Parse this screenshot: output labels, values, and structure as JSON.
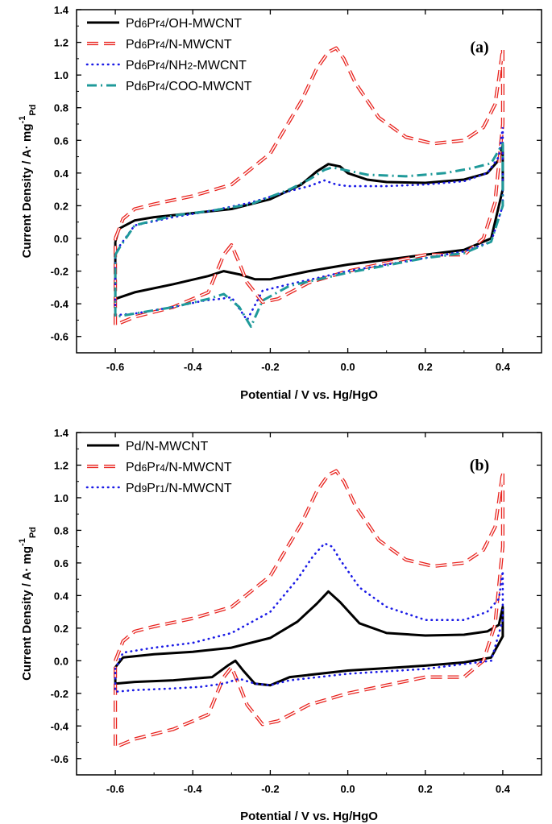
{
  "chart_data": [
    {
      "type": "line",
      "panel_label": "(a)",
      "xlabel": "Potential / V vs. Hg/HgO",
      "ylabel": "Current Density / A· mg",
      "ylabel_sup": "-1",
      "ylabel_sub": "Pd",
      "xlim": [
        -0.7,
        0.5
      ],
      "ylim": [
        -0.7,
        1.4
      ],
      "xticks": [
        "-0.6",
        "-0.4",
        "-0.2",
        "0.0",
        "0.2",
        "0.4"
      ],
      "yticks": [
        "-0.6",
        "-0.4",
        "-0.2",
        "0.0",
        "0.2",
        "0.4",
        "0.6",
        "0.8",
        "1.0",
        "1.2",
        "1.4"
      ],
      "series": [
        {
          "name": "Pd6Pr4/OH-MWCNT",
          "parts": [
            [
              "Pd",
              ""
            ],
            [
              "6",
              "sub"
            ],
            [
              "Pr",
              ""
            ],
            [
              "4",
              "sub"
            ],
            [
              "/OH-MWCNT",
              ""
            ]
          ],
          "color": "#000000",
          "style": "solid",
          "x": [
            -0.6,
            -0.59,
            -0.55,
            -0.5,
            -0.4,
            -0.3,
            -0.2,
            -0.12,
            -0.08,
            -0.05,
            -0.02,
            0.0,
            0.05,
            0.1,
            0.2,
            0.3,
            0.36,
            0.39,
            0.4,
            0.4,
            0.37,
            0.3,
            0.2,
            0.1,
            0.0,
            -0.1,
            -0.2,
            -0.24,
            -0.28,
            -0.32,
            -0.36,
            -0.45,
            -0.55,
            -0.6,
            -0.6
          ],
          "y": [
            -0.02,
            0.06,
            0.11,
            0.13,
            0.155,
            0.18,
            0.24,
            0.33,
            0.41,
            0.455,
            0.44,
            0.4,
            0.36,
            0.345,
            0.34,
            0.36,
            0.4,
            0.48,
            0.57,
            0.3,
            0.0,
            -0.07,
            -0.1,
            -0.13,
            -0.16,
            -0.2,
            -0.25,
            -0.25,
            -0.22,
            -0.2,
            -0.23,
            -0.28,
            -0.33,
            -0.37,
            -0.02
          ]
        },
        {
          "name": "Pd6Pr4/N-MWCNT",
          "parts": [
            [
              "Pd",
              ""
            ],
            [
              "6",
              "sub"
            ],
            [
              "Pr",
              ""
            ],
            [
              "4",
              "sub"
            ],
            [
              "/N-MWCNT",
              ""
            ]
          ],
          "color": "#e8231e",
          "style": "double-dash",
          "x": [
            -0.6,
            -0.58,
            -0.55,
            -0.5,
            -0.4,
            -0.3,
            -0.2,
            -0.12,
            -0.08,
            -0.05,
            -0.03,
            -0.01,
            0.02,
            0.08,
            0.15,
            0.22,
            0.3,
            0.35,
            0.38,
            0.39,
            0.4,
            0.4,
            0.38,
            0.35,
            0.3,
            0.2,
            0.1,
            0.0,
            -0.1,
            -0.18,
            -0.22,
            -0.26,
            -0.28,
            -0.3,
            -0.32,
            -0.36,
            -0.45,
            -0.55,
            -0.6,
            -0.6
          ],
          "y": [
            0.0,
            0.12,
            0.18,
            0.21,
            0.26,
            0.33,
            0.52,
            0.84,
            1.04,
            1.14,
            1.165,
            1.1,
            0.95,
            0.74,
            0.62,
            0.58,
            0.6,
            0.68,
            0.82,
            0.98,
            1.16,
            0.7,
            0.22,
            0.0,
            -0.1,
            -0.1,
            -0.15,
            -0.2,
            -0.27,
            -0.37,
            -0.39,
            -0.27,
            -0.15,
            -0.04,
            -0.1,
            -0.33,
            -0.42,
            -0.48,
            -0.53,
            0.0
          ]
        },
        {
          "name": "Pd6Pr4/NH2-MWCNT",
          "parts": [
            [
              "Pd",
              ""
            ],
            [
              "6",
              "sub"
            ],
            [
              "Pr",
              ""
            ],
            [
              "4",
              "sub"
            ],
            [
              "/NH",
              ""
            ],
            [
              "2",
              "sub"
            ],
            [
              "-MWCNT",
              ""
            ]
          ],
          "color": "#1a1ae6",
          "style": "dot",
          "x": [
            -0.6,
            -0.59,
            -0.55,
            -0.45,
            -0.35,
            -0.25,
            -0.15,
            -0.1,
            -0.06,
            -0.03,
            0.0,
            0.1,
            0.2,
            0.3,
            0.36,
            0.39,
            0.4,
            0.4,
            0.37,
            0.3,
            0.2,
            0.0,
            -0.15,
            -0.22,
            -0.26,
            -0.3,
            -0.33,
            -0.37,
            -0.45,
            -0.55,
            -0.6,
            -0.6
          ],
          "y": [
            -0.1,
            -0.05,
            0.08,
            0.13,
            0.17,
            0.22,
            0.29,
            0.32,
            0.355,
            0.33,
            0.32,
            0.32,
            0.33,
            0.35,
            0.4,
            0.5,
            0.68,
            0.2,
            -0.02,
            -0.08,
            -0.12,
            -0.2,
            -0.28,
            -0.32,
            -0.5,
            -0.36,
            -0.37,
            -0.38,
            -0.42,
            -0.46,
            -0.47,
            -0.1
          ]
        },
        {
          "name": "Pd6Pr4/COO-MWCNT",
          "parts": [
            [
              "Pd",
              ""
            ],
            [
              "6",
              "sub"
            ],
            [
              "Pr",
              ""
            ],
            [
              "4",
              "sub"
            ],
            [
              "/COO-MWCNT",
              ""
            ]
          ],
          "color": "#1f9a9a",
          "style": "dash-dot",
          "x": [
            -0.6,
            -0.59,
            -0.55,
            -0.45,
            -0.35,
            -0.25,
            -0.15,
            -0.1,
            -0.06,
            -0.04,
            -0.01,
            0.05,
            0.15,
            0.25,
            0.32,
            0.37,
            0.4,
            0.4,
            0.37,
            0.3,
            0.2,
            0.0,
            -0.15,
            -0.22,
            -0.25,
            -0.28,
            -0.32,
            -0.36,
            -0.45,
            -0.55,
            -0.6,
            -0.6
          ],
          "y": [
            -0.1,
            -0.06,
            0.08,
            0.14,
            0.17,
            0.21,
            0.3,
            0.36,
            0.42,
            0.435,
            0.42,
            0.39,
            0.38,
            0.4,
            0.43,
            0.46,
            0.58,
            0.2,
            -0.02,
            -0.09,
            -0.12,
            -0.21,
            -0.29,
            -0.38,
            -0.54,
            -0.42,
            -0.34,
            -0.37,
            -0.42,
            -0.46,
            -0.48,
            -0.1
          ]
        }
      ]
    },
    {
      "type": "line",
      "panel_label": "(b)",
      "xlabel": "Potential / V vs. Hg/HgO",
      "ylabel": "Current Density / A· mg",
      "ylabel_sup": "-1",
      "ylabel_sub": "Pd",
      "xlim": [
        -0.7,
        0.5
      ],
      "ylim": [
        -0.7,
        1.4
      ],
      "xticks": [
        "-0.6",
        "-0.4",
        "-0.2",
        "0.0",
        "0.2",
        "0.4"
      ],
      "yticks": [
        "-0.6",
        "-0.4",
        "-0.2",
        "0.0",
        "0.2",
        "0.4",
        "0.6",
        "0.8",
        "1.0",
        "1.2",
        "1.4"
      ],
      "series": [
        {
          "name": "Pd/N-MWCNT",
          "parts": [
            [
              "Pd/N-MWCNT",
              ""
            ]
          ],
          "color": "#000000",
          "style": "solid",
          "x": [
            -0.6,
            -0.58,
            -0.5,
            -0.4,
            -0.3,
            -0.2,
            -0.13,
            -0.08,
            -0.05,
            -0.02,
            0.03,
            0.1,
            0.2,
            0.3,
            0.36,
            0.39,
            0.4,
            0.4,
            0.37,
            0.3,
            0.2,
            0.0,
            -0.15,
            -0.2,
            -0.24,
            -0.27,
            -0.29,
            -0.31,
            -0.35,
            -0.45,
            -0.55,
            -0.6,
            -0.6
          ],
          "y": [
            -0.04,
            0.02,
            0.04,
            0.055,
            0.08,
            0.14,
            0.24,
            0.35,
            0.425,
            0.36,
            0.23,
            0.17,
            0.155,
            0.16,
            0.18,
            0.22,
            0.33,
            0.15,
            0.02,
            -0.01,
            -0.03,
            -0.06,
            -0.1,
            -0.15,
            -0.14,
            -0.06,
            0.0,
            -0.03,
            -0.1,
            -0.12,
            -0.13,
            -0.14,
            -0.04
          ]
        },
        {
          "name": "Pd6Pr4/N-MWCNT",
          "parts": [
            [
              "Pd",
              ""
            ],
            [
              "6",
              "sub"
            ],
            [
              "Pr",
              ""
            ],
            [
              "4",
              "sub"
            ],
            [
              "/N-MWCNT",
              ""
            ]
          ],
          "color": "#e8231e",
          "style": "double-dash",
          "x": [
            -0.6,
            -0.58,
            -0.55,
            -0.5,
            -0.4,
            -0.3,
            -0.2,
            -0.12,
            -0.08,
            -0.05,
            -0.03,
            -0.01,
            0.02,
            0.08,
            0.15,
            0.22,
            0.3,
            0.35,
            0.38,
            0.39,
            0.4,
            0.4,
            0.38,
            0.35,
            0.3,
            0.2,
            0.1,
            0.0,
            -0.1,
            -0.18,
            -0.22,
            -0.26,
            -0.28,
            -0.3,
            -0.32,
            -0.36,
            -0.45,
            -0.55,
            -0.6,
            -0.6
          ],
          "y": [
            0.0,
            0.12,
            0.18,
            0.21,
            0.26,
            0.33,
            0.52,
            0.84,
            1.04,
            1.14,
            1.165,
            1.1,
            0.95,
            0.74,
            0.62,
            0.58,
            0.6,
            0.68,
            0.82,
            0.98,
            1.16,
            0.7,
            0.22,
            0.0,
            -0.1,
            -0.1,
            -0.15,
            -0.2,
            -0.27,
            -0.37,
            -0.39,
            -0.27,
            -0.15,
            -0.04,
            -0.1,
            -0.33,
            -0.42,
            -0.48,
            -0.53,
            0.0
          ]
        },
        {
          "name": "Pd9Pr1/N-MWCNT",
          "parts": [
            [
              "Pd",
              ""
            ],
            [
              "9",
              "sub"
            ],
            [
              "Pr",
              ""
            ],
            [
              "1",
              "sub"
            ],
            [
              "/N-MWCNT",
              ""
            ]
          ],
          "color": "#1a1ae6",
          "style": "dot",
          "x": [
            -0.6,
            -0.58,
            -0.5,
            -0.4,
            -0.3,
            -0.2,
            -0.13,
            -0.09,
            -0.06,
            -0.04,
            -0.02,
            0.03,
            0.1,
            0.2,
            0.3,
            0.36,
            0.39,
            0.4,
            0.4,
            0.37,
            0.3,
            0.2,
            0.0,
            -0.15,
            -0.2,
            -0.24,
            -0.28,
            -0.32,
            -0.38,
            -0.45,
            -0.55,
            -0.6,
            -0.6
          ],
          "y": [
            -0.05,
            0.05,
            0.08,
            0.11,
            0.17,
            0.3,
            0.5,
            0.64,
            0.72,
            0.7,
            0.62,
            0.45,
            0.33,
            0.25,
            0.25,
            0.3,
            0.38,
            0.55,
            0.25,
            0.0,
            -0.02,
            -0.05,
            -0.08,
            -0.12,
            -0.15,
            -0.14,
            -0.11,
            -0.14,
            -0.16,
            -0.17,
            -0.18,
            -0.19,
            -0.05
          ]
        }
      ]
    }
  ]
}
